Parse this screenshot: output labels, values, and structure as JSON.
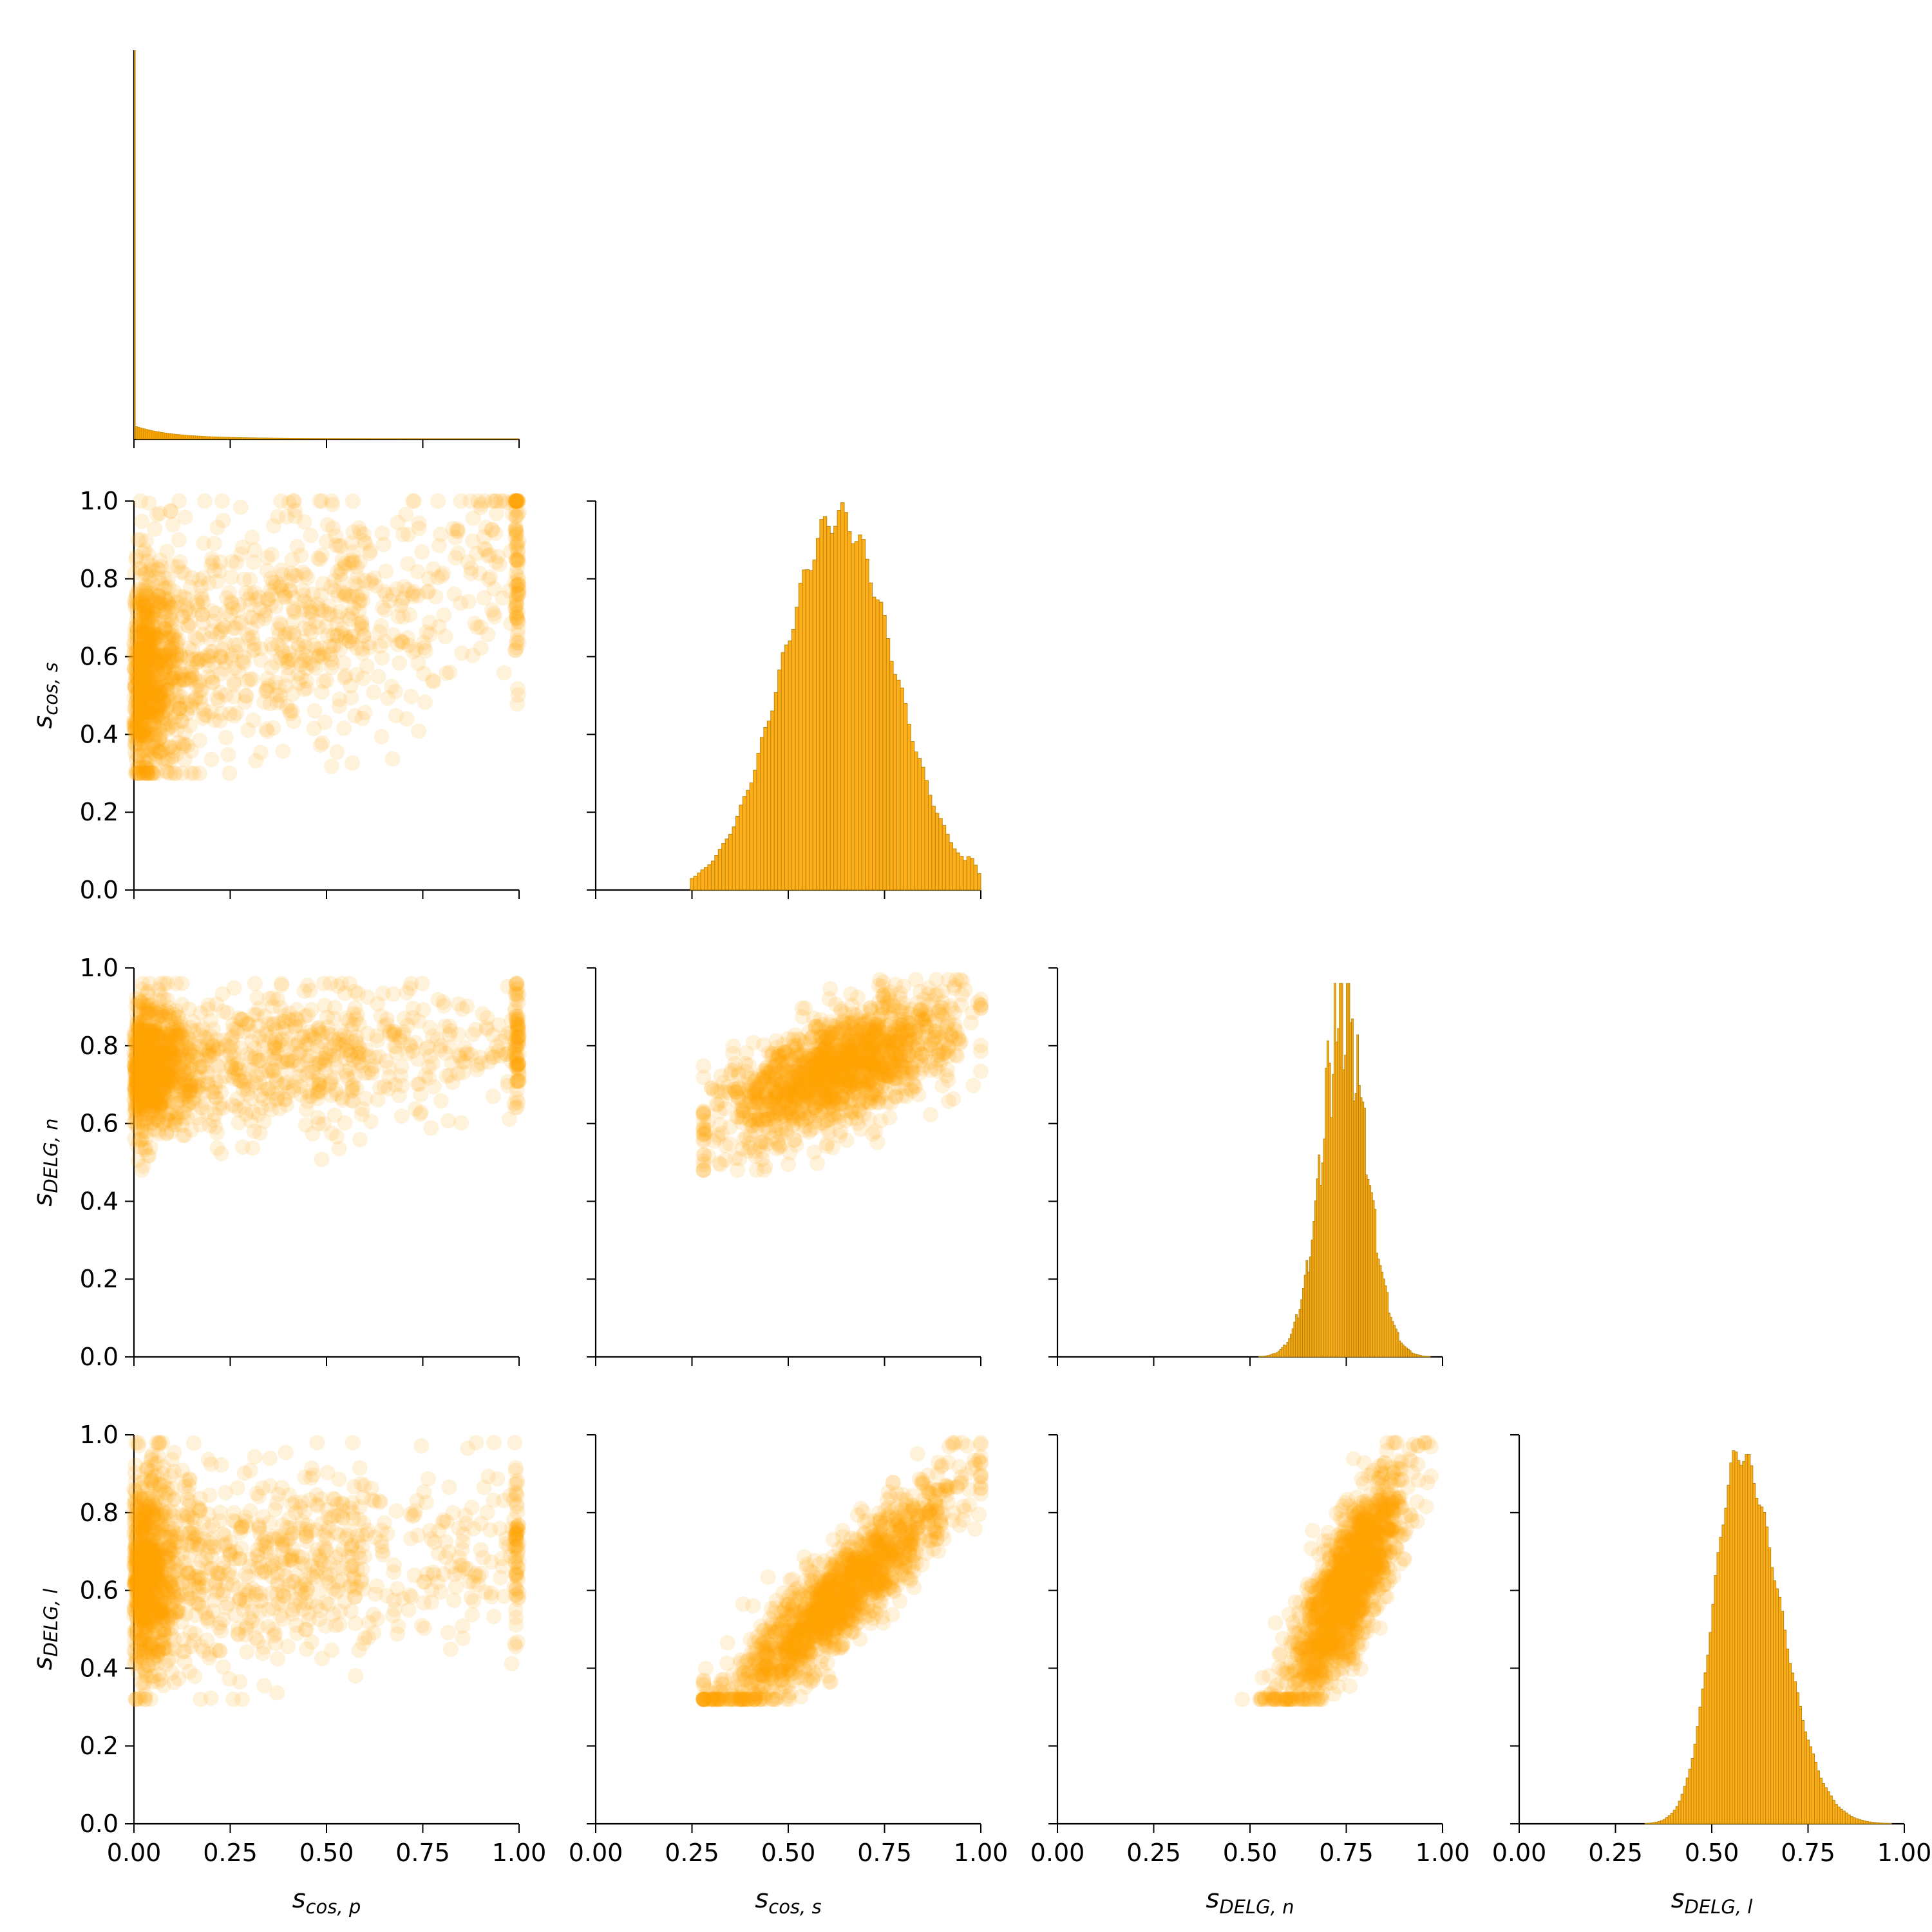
{
  "chart_data": {
    "type": "scatter",
    "variables": [
      {
        "key": "scos_p",
        "sym": "s",
        "sub": "cos, p"
      },
      {
        "key": "scos_s",
        "sym": "s",
        "sub": "cos, s"
      },
      {
        "key": "sdelg_n",
        "sym": "s",
        "sub": "DELG, n"
      },
      {
        "key": "sdelg_l",
        "sym": "s",
        "sub": "DELG, l"
      }
    ],
    "ticks": [
      "0.00",
      "0.25",
      "0.50",
      "0.75",
      "1.00"
    ],
    "y_ticks": [
      "0.0",
      "0.2",
      "0.4",
      "0.6",
      "0.8",
      "1.0"
    ],
    "xlim": [
      0,
      1
    ],
    "ylim": [
      0,
      1
    ],
    "grid": false,
    "layout": "corner pair plot (lower triangle scatter, diagonal histograms)",
    "color": "#FFA500",
    "edge_color": "#B8860B",
    "diagonal_histograms": [
      {
        "variable": "scos_p",
        "peak_at": 0.0,
        "shape": "spike at 0 with long thin tail to 1"
      },
      {
        "variable": "scos_s",
        "peak_at": 0.62,
        "range": [
          0.25,
          1.0
        ],
        "shape": "unimodal, secondary bump near 0.97"
      },
      {
        "variable": "sdelg_n",
        "peak_at": 0.75,
        "range": [
          0.5,
          0.97
        ],
        "shape": "narrow, spiky"
      },
      {
        "variable": "sdelg_l",
        "peak_at": 0.56,
        "range": [
          0.32,
          0.98
        ],
        "shape": "unimodal, right tail"
      }
    ],
    "scatter_panels": [
      {
        "x": "scos_p",
        "y": "scos_s",
        "x_range": [
          0,
          1
        ],
        "y_range": [
          0.3,
          1.0
        ]
      },
      {
        "x": "scos_p",
        "y": "sdelg_n",
        "x_range": [
          0,
          1
        ],
        "y_range": [
          0.48,
          0.97
        ]
      },
      {
        "x": "scos_s",
        "y": "sdelg_n",
        "x_range": [
          0.28,
          1.0
        ],
        "y_range": [
          0.48,
          0.97
        ]
      },
      {
        "x": "scos_p",
        "y": "sdelg_l",
        "x_range": [
          0,
          1
        ],
        "y_range": [
          0.32,
          0.98
        ]
      },
      {
        "x": "scos_s",
        "y": "sdelg_l",
        "x_range": [
          0.28,
          1.0
        ],
        "y_range": [
          0.32,
          0.98
        ]
      },
      {
        "x": "sdelg_n",
        "y": "sdelg_l",
        "x_range": [
          0.48,
          0.97
        ],
        "y_range": [
          0.32,
          0.98
        ]
      }
    ]
  }
}
